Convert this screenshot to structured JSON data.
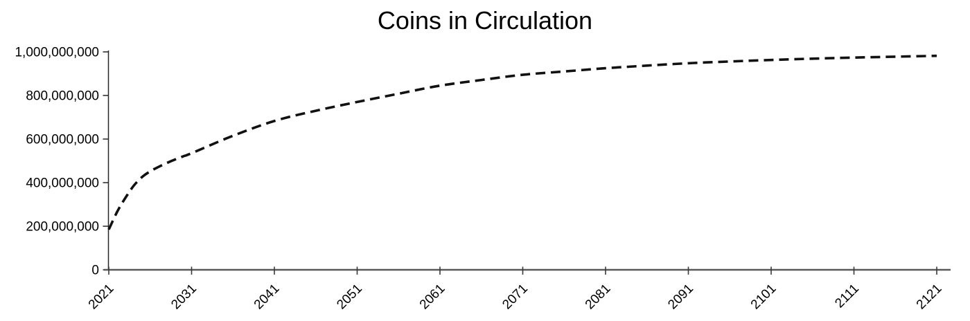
{
  "title": "Coins in Circulation",
  "chart_data": {
    "type": "line",
    "title": "Coins in Circulation",
    "xlabel": "",
    "ylabel": "",
    "grid": false,
    "legend": "none",
    "xlim": [
      2021,
      2122
    ],
    "ylim": [
      0,
      1000000000
    ],
    "x_ticks": [
      2021,
      2031,
      2041,
      2051,
      2061,
      2071,
      2081,
      2091,
      2101,
      2111,
      2121
    ],
    "x_tick_labels": [
      "2021",
      "2031",
      "2041",
      "2051",
      "2061",
      "2071",
      "2081",
      "2091",
      "2101",
      "2111",
      "2121"
    ],
    "y_ticks": [
      0,
      200000000,
      400000000,
      600000000,
      800000000,
      1000000000
    ],
    "y_tick_labels": [
      "0",
      "200,000,000",
      "400,000,000",
      "600,000,000",
      "800,000,000",
      "1,000,000,000"
    ],
    "series": [
      {
        "name": "Coins in Circulation",
        "line_style": "dashed",
        "color": "#111111",
        "points": [
          [
            2021,
            185000000
          ],
          [
            2022,
            265000000
          ],
          [
            2023,
            330000000
          ],
          [
            2024,
            385000000
          ],
          [
            2025,
            425000000
          ],
          [
            2026,
            452000000
          ],
          [
            2027,
            472000000
          ],
          [
            2028,
            490000000
          ],
          [
            2029,
            506000000
          ],
          [
            2030,
            521000000
          ],
          [
            2031,
            535000000
          ],
          [
            2036,
            615000000
          ],
          [
            2041,
            683000000
          ],
          [
            2046,
            730000000
          ],
          [
            2051,
            770000000
          ],
          [
            2056,
            808000000
          ],
          [
            2061,
            845000000
          ],
          [
            2066,
            871000000
          ],
          [
            2071,
            895000000
          ],
          [
            2076,
            910000000
          ],
          [
            2081,
            925000000
          ],
          [
            2086,
            937000000
          ],
          [
            2091,
            948000000
          ],
          [
            2096,
            956000000
          ],
          [
            2101,
            963000000
          ],
          [
            2106,
            969000000
          ],
          [
            2111,
            974000000
          ],
          [
            2116,
            978000000
          ],
          [
            2121,
            982000000
          ]
        ]
      }
    ]
  },
  "style": {
    "background": "#ffffff",
    "text_color": "#000000",
    "x_axis_color": "#595959",
    "y_axis_color": "#262626",
    "tick_color": "#3a3a3a",
    "line_color": "#111111"
  }
}
